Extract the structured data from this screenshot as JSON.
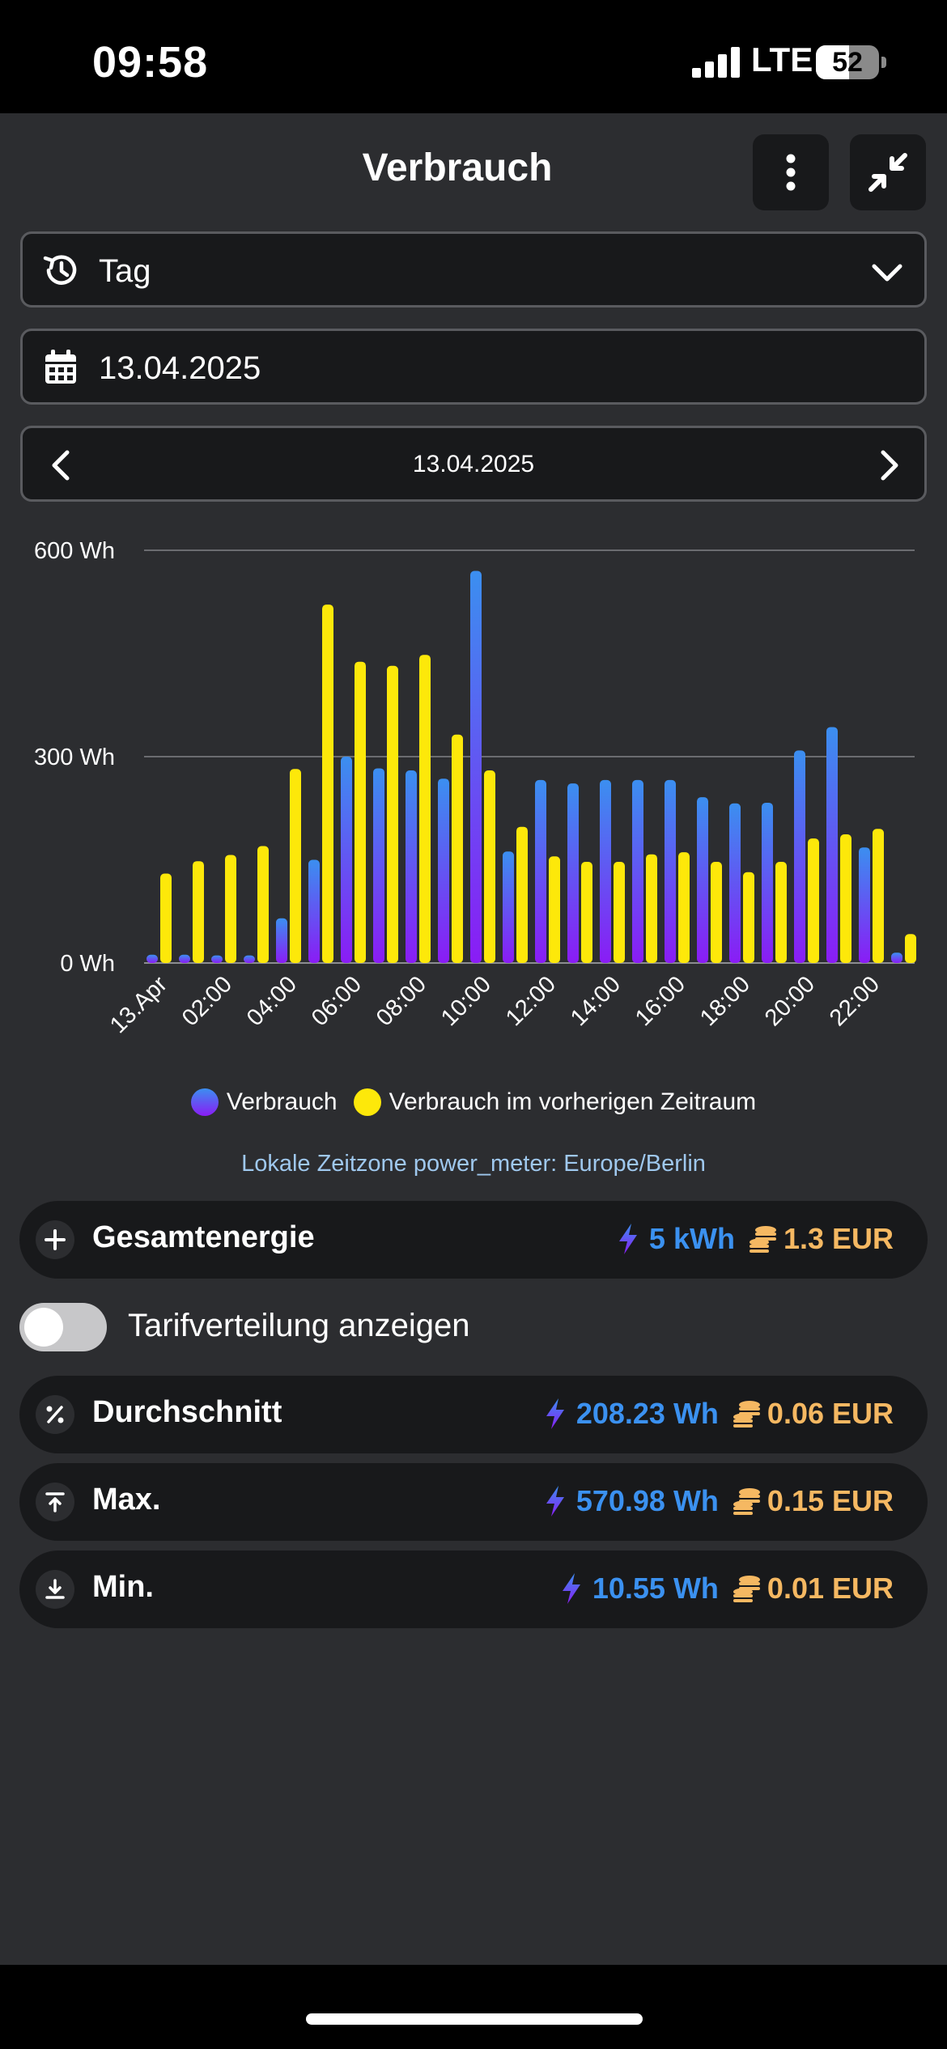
{
  "status": {
    "time": "09:58",
    "network": "LTE",
    "battery": "52",
    "battery_level": 0.52
  },
  "header": {
    "title": "Verbrauch",
    "more_icon": "more-vertical-icon",
    "collapse_icon": "minimize-icon"
  },
  "period_select": {
    "value": "Tag",
    "icon": "history-icon"
  },
  "date_input": {
    "value": "13.04.2025",
    "icon": "calendar-icon"
  },
  "date_nav": {
    "label": "13.04.2025"
  },
  "chart_data": {
    "type": "bar",
    "yticks": [
      "600 Wh",
      "300 Wh",
      "0 Wh"
    ],
    "ylim": [
      0,
      600
    ],
    "grid": true,
    "xtick_labels": [
      "13.Apr",
      "02:00",
      "04:00",
      "06:00",
      "08:00",
      "10:00",
      "12:00",
      "14:00",
      "16:00",
      "18:00",
      "20:00",
      "22:00"
    ],
    "categories": [
      "00:00",
      "01:00",
      "02:00",
      "03:00",
      "04:00",
      "05:00",
      "06:00",
      "07:00",
      "08:00",
      "09:00",
      "10:00",
      "11:00",
      "12:00",
      "13:00",
      "14:00",
      "15:00",
      "16:00",
      "17:00",
      "18:00",
      "19:00",
      "20:00",
      "21:00",
      "22:00",
      "23:00"
    ],
    "series": [
      {
        "name": "Verbrauch",
        "color": "#3b8ff0",
        "values": [
          12,
          12,
          11,
          11,
          65,
          150,
          300,
          283,
          280,
          268,
          570,
          162,
          266,
          261,
          266,
          266,
          266,
          241,
          232,
          233,
          309,
          343,
          168,
          15
        ]
      },
      {
        "name": "Verbrauch im vorherigen Zeitraum",
        "color": "#fde80a",
        "values": [
          130,
          148,
          157,
          170,
          282,
          521,
          438,
          432,
          448,
          332,
          280,
          198,
          155,
          147,
          147,
          158,
          161,
          147,
          132,
          147,
          181,
          187,
          195,
          42
        ]
      }
    ],
    "legend_position": "bottom"
  },
  "legend": {
    "item1": "Verbrauch",
    "item2": "Verbrauch im vorherigen Zeitraum"
  },
  "timezone_note": "Lokale Zeitzone power_meter: Europe/Berlin",
  "total": {
    "label": "Gesamtenergie",
    "energy": "5 kWh",
    "cost": "1.3 EUR",
    "icon": "plus-icon"
  },
  "tariff_toggle": {
    "label": "Tarifverteilung anzeigen",
    "on": false
  },
  "stats": [
    {
      "label": "Durchschnitt",
      "energy": "208.23 Wh",
      "cost": "0.06 EUR",
      "icon": "percent-icon"
    },
    {
      "label": "Max.",
      "energy": "570.98 Wh",
      "cost": "0.15 EUR",
      "icon": "arrow-up-to-line-icon"
    },
    {
      "label": "Min.",
      "energy": "10.55 Wh",
      "cost": "0.01 EUR",
      "icon": "arrow-down-to-line-icon"
    }
  ]
}
